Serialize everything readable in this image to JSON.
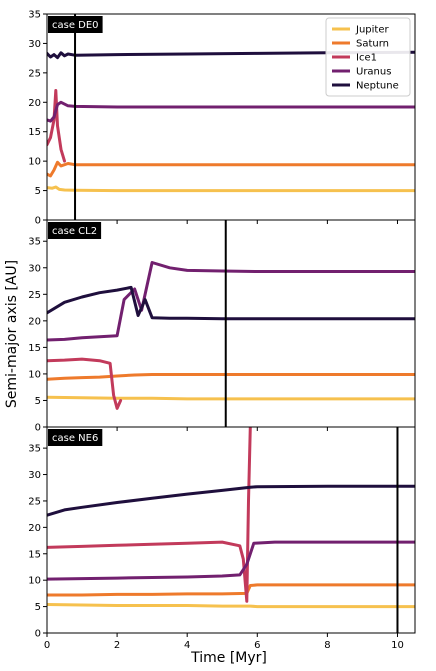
{
  "chart_data": [
    {
      "type": "line",
      "label": "case DE0",
      "xlim": [
        0,
        10.5
      ],
      "ylim": [
        0,
        35
      ],
      "yticks": [
        0,
        5,
        10,
        15,
        20,
        25,
        30,
        35
      ],
      "xticks": [
        0,
        2,
        4,
        6,
        8,
        10
      ],
      "vline_x": 0.8,
      "legend_position": "top-right",
      "series": [
        {
          "name": "Jupiter",
          "color": "#f6c14e",
          "x": [
            0,
            0.15,
            0.25,
            0.35,
            0.5,
            0.8,
            2,
            4,
            6,
            8,
            10.5
          ],
          "y": [
            5.5,
            5.4,
            5.6,
            5.2,
            5.1,
            5.05,
            5.0,
            5.0,
            5.0,
            5.0,
            5.0
          ]
        },
        {
          "name": "Saturn",
          "color": "#ee7a2c",
          "x": [
            0,
            0.1,
            0.2,
            0.3,
            0.4,
            0.6,
            0.8,
            2,
            4,
            6,
            8,
            10.5
          ],
          "y": [
            7.8,
            7.5,
            8.5,
            9.8,
            9.2,
            9.6,
            9.4,
            9.4,
            9.4,
            9.4,
            9.4,
            9.4
          ]
        },
        {
          "name": "Ice1",
          "color": "#c23a5b",
          "x": [
            0,
            0.1,
            0.2,
            0.25,
            0.3,
            0.4,
            0.5
          ],
          "y": [
            12.8,
            14,
            17,
            22,
            16,
            12,
            10
          ]
        },
        {
          "name": "Uranus",
          "color": "#72206f",
          "x": [
            0,
            0.1,
            0.2,
            0.3,
            0.4,
            0.6,
            0.8,
            2,
            4,
            6,
            8,
            10.5
          ],
          "y": [
            17,
            16.8,
            17.5,
            19.6,
            20,
            19.4,
            19.3,
            19.2,
            19.2,
            19.2,
            19.2,
            19.2
          ]
        },
        {
          "name": "Neptune",
          "color": "#1f0f3d",
          "x": [
            0,
            0.1,
            0.2,
            0.3,
            0.4,
            0.5,
            0.6,
            0.8,
            2,
            4,
            6,
            8,
            10.5
          ],
          "y": [
            28.3,
            27.7,
            28.1,
            27.6,
            28.4,
            27.9,
            28.2,
            28.0,
            28.1,
            28.2,
            28.3,
            28.4,
            28.5
          ]
        }
      ]
    },
    {
      "type": "line",
      "label": "case CL2",
      "xlim": [
        0,
        10.5
      ],
      "ylim": [
        0,
        39
      ],
      "yticks": [
        0,
        5,
        10,
        15,
        20,
        25,
        30,
        35
      ],
      "xticks": [
        0,
        2,
        4,
        6,
        8,
        10
      ],
      "vline_x": 5.1,
      "series": [
        {
          "name": "Jupiter",
          "color": "#f6c14e",
          "x": [
            0,
            1,
            2,
            3,
            4,
            5,
            6,
            8,
            10.5
          ],
          "y": [
            5.6,
            5.5,
            5.4,
            5.4,
            5.3,
            5.3,
            5.3,
            5.3,
            5.3
          ]
        },
        {
          "name": "Saturn",
          "color": "#ee7a2c",
          "x": [
            0,
            0.5,
            1,
            1.5,
            2,
            2.5,
            3,
            4,
            5,
            6,
            8,
            10.5
          ],
          "y": [
            9.0,
            9.2,
            9.3,
            9.4,
            9.6,
            9.8,
            9.9,
            9.9,
            9.9,
            9.9,
            9.9,
            9.9
          ]
        },
        {
          "name": "Ice1",
          "color": "#c23a5b",
          "x": [
            0,
            0.5,
            1,
            1.5,
            1.8,
            1.9,
            2.0,
            2.1
          ],
          "y": [
            12.5,
            12.6,
            12.8,
            12.5,
            12.0,
            6.0,
            3.5,
            5.0
          ]
        },
        {
          "name": "Uranus",
          "color": "#72206f",
          "x": [
            0,
            0.5,
            1,
            1.5,
            2,
            2.2,
            2.5,
            2.7,
            3,
            3.5,
            4,
            5,
            6,
            8,
            10.5
          ],
          "y": [
            16.4,
            16.5,
            16.8,
            17.0,
            17.2,
            24,
            26,
            22,
            31,
            30,
            29.5,
            29.4,
            29.3,
            29.3,
            29.3
          ]
        },
        {
          "name": "Neptune",
          "color": "#1f0f3d",
          "x": [
            0,
            0.5,
            1,
            1.5,
            2,
            2.4,
            2.6,
            2.8,
            3,
            3.5,
            4,
            5,
            6,
            8,
            10.5
          ],
          "y": [
            21.5,
            23.5,
            24.5,
            25.3,
            25.8,
            26.3,
            21.0,
            24.0,
            20.6,
            20.5,
            20.5,
            20.4,
            20.4,
            20.4,
            20.4
          ]
        }
      ]
    },
    {
      "type": "line",
      "label": "case NE6",
      "xlim": [
        0,
        10.5
      ],
      "ylim": [
        0,
        39
      ],
      "yticks": [
        0,
        5,
        10,
        15,
        20,
        25,
        30,
        35
      ],
      "xticks": [
        0,
        2,
        4,
        6,
        8,
        10
      ],
      "vline_x": 10.0,
      "series": [
        {
          "name": "Jupiter",
          "color": "#f6c14e",
          "x": [
            0,
            1,
            2,
            3,
            4,
            5,
            5.8,
            6,
            8,
            10.5
          ],
          "y": [
            5.4,
            5.3,
            5.2,
            5.2,
            5.2,
            5.1,
            5.1,
            5.0,
            5.0,
            5.0
          ]
        },
        {
          "name": "Saturn",
          "color": "#ee7a2c",
          "x": [
            0,
            1,
            2,
            3,
            4,
            5,
            5.7,
            5.8,
            6,
            8,
            10.5
          ],
          "y": [
            7.2,
            7.2,
            7.3,
            7.3,
            7.4,
            7.4,
            7.5,
            9.0,
            9.1,
            9.1,
            9.1
          ]
        },
        {
          "name": "Ice1",
          "color": "#c23a5b",
          "x": [
            0,
            1,
            2,
            3,
            4,
            5,
            5.5,
            5.6,
            5.7,
            5.75,
            5.8
          ],
          "y": [
            16.2,
            16.4,
            16.6,
            16.8,
            17.0,
            17.2,
            16.5,
            14.0,
            6.0,
            25,
            39
          ]
        },
        {
          "name": "Uranus",
          "color": "#72206f",
          "x": [
            0,
            1,
            2,
            3,
            4,
            5,
            5.5,
            5.7,
            5.9,
            6.5,
            8,
            10.5
          ],
          "y": [
            10.2,
            10.3,
            10.4,
            10.5,
            10.6,
            10.8,
            11.0,
            13.0,
            17.0,
            17.2,
            17.2,
            17.2
          ]
        },
        {
          "name": "Neptune",
          "color": "#1f0f3d",
          "x": [
            0,
            0.5,
            1,
            2,
            3,
            4,
            5,
            5.8,
            6,
            8,
            10.5
          ],
          "y": [
            22.3,
            23.3,
            23.8,
            24.7,
            25.5,
            26.3,
            27.0,
            27.6,
            27.7,
            27.8,
            27.8
          ]
        }
      ]
    }
  ],
  "xlabel": "Time [Myr]",
  "ylabel": "Semi-major axis [AU]"
}
